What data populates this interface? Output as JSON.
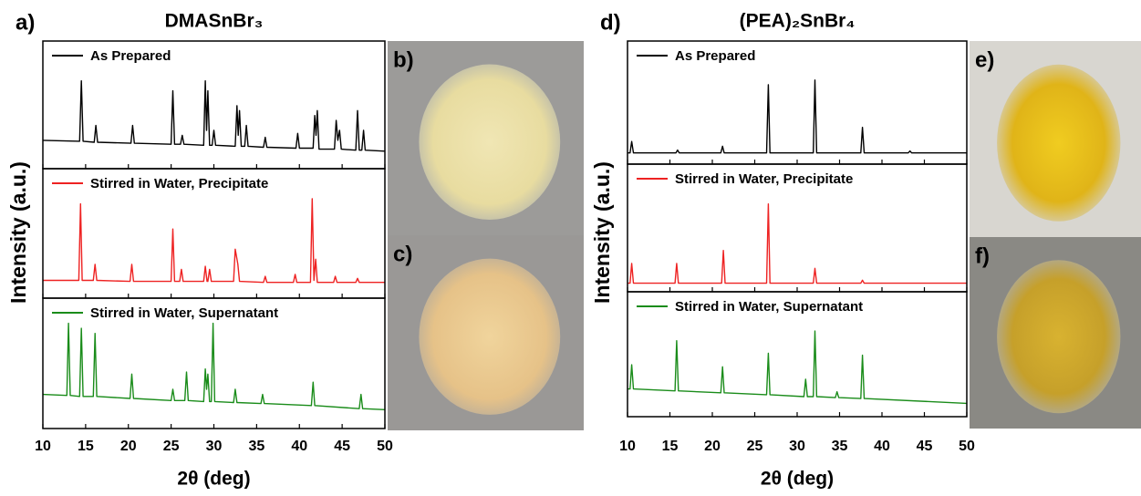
{
  "chart_data": [
    {
      "type": "line",
      "panel_label": "a)",
      "title": "DMASnBr₃",
      "xlabel": "2θ (deg)",
      "ylabel": "Intensity (a.u.)",
      "xlim": [
        10,
        50
      ],
      "xticks": [
        10,
        15,
        20,
        25,
        30,
        35,
        40,
        45,
        50
      ],
      "ylim": [
        0,
        1.05
      ],
      "series": [
        {
          "name": "As Prepared",
          "color": "#000000",
          "x": [
            10,
            14.3,
            14.5,
            14.7,
            16.0,
            16.2,
            16.4,
            20.3,
            20.5,
            20.7,
            25.0,
            25.2,
            25.4,
            26.1,
            26.3,
            26.5,
            28.8,
            29.0,
            29.15,
            29.3,
            29.5,
            29.8,
            30.0,
            30.2,
            32.5,
            32.7,
            32.85,
            33.0,
            33.2,
            33.6,
            33.8,
            34.0,
            35.8,
            36.0,
            36.2,
            39.6,
            39.8,
            40.0,
            41.6,
            41.8,
            41.95,
            42.1,
            42.3,
            44.1,
            44.3,
            44.5,
            44.7,
            44.9,
            46.6,
            46.8,
            47.0,
            47.3,
            47.5,
            47.7,
            50
          ],
          "values": [
            0.25,
            0.24,
            0.85,
            0.24,
            0.23,
            0.4,
            0.23,
            0.22,
            0.4,
            0.22,
            0.21,
            0.75,
            0.21,
            0.21,
            0.3,
            0.21,
            0.2,
            0.85,
            0.35,
            0.75,
            0.2,
            0.2,
            0.35,
            0.2,
            0.19,
            0.6,
            0.3,
            0.55,
            0.19,
            0.19,
            0.4,
            0.19,
            0.18,
            0.28,
            0.18,
            0.17,
            0.32,
            0.17,
            0.17,
            0.5,
            0.3,
            0.55,
            0.16,
            0.16,
            0.45,
            0.25,
            0.35,
            0.16,
            0.15,
            0.55,
            0.15,
            0.15,
            0.35,
            0.15,
            0.14
          ]
        },
        {
          "name": "Stirred in Water, Precipitate",
          "color": "#ee2222",
          "x": [
            10,
            14.2,
            14.4,
            14.6,
            15.9,
            16.1,
            16.3,
            20.2,
            20.4,
            20.6,
            25.0,
            25.2,
            25.4,
            26.0,
            26.2,
            26.4,
            28.8,
            29.0,
            29.2,
            29.3,
            29.5,
            29.7,
            32.3,
            32.5,
            32.8,
            33.0,
            35.8,
            36.0,
            36.2,
            39.3,
            39.5,
            39.7,
            41.3,
            41.5,
            41.7,
            41.9,
            42.1,
            44.0,
            44.2,
            44.4,
            46.6,
            46.8,
            47.0,
            50
          ],
          "values": [
            0.14,
            0.14,
            0.9,
            0.14,
            0.14,
            0.3,
            0.14,
            0.13,
            0.3,
            0.13,
            0.13,
            0.65,
            0.13,
            0.13,
            0.25,
            0.13,
            0.13,
            0.28,
            0.13,
            0.13,
            0.25,
            0.13,
            0.13,
            0.45,
            0.3,
            0.13,
            0.12,
            0.18,
            0.12,
            0.12,
            0.2,
            0.12,
            0.12,
            0.95,
            0.14,
            0.35,
            0.12,
            0.12,
            0.18,
            0.12,
            0.12,
            0.16,
            0.12,
            0.12
          ]
        },
        {
          "name": "Stirred in Water, Supernatant",
          "color": "#1a8c1a",
          "x": [
            10,
            12.8,
            13.0,
            13.2,
            14.3,
            14.5,
            14.7,
            15.9,
            16.1,
            16.3,
            20.2,
            20.4,
            20.6,
            25.0,
            25.2,
            25.4,
            26.6,
            26.8,
            27.0,
            28.8,
            29.0,
            29.15,
            29.3,
            29.5,
            29.7,
            29.9,
            30.1,
            32.3,
            32.5,
            32.7,
            35.5,
            35.7,
            35.9,
            41.4,
            41.6,
            41.8,
            47.0,
            47.2,
            47.4,
            50
          ],
          "values": [
            0.3,
            0.29,
            1.0,
            0.29,
            0.28,
            0.95,
            0.28,
            0.28,
            0.9,
            0.28,
            0.26,
            0.5,
            0.26,
            0.24,
            0.35,
            0.24,
            0.24,
            0.52,
            0.24,
            0.23,
            0.55,
            0.35,
            0.5,
            0.23,
            0.23,
            1.0,
            0.23,
            0.22,
            0.35,
            0.22,
            0.21,
            0.3,
            0.21,
            0.19,
            0.42,
            0.19,
            0.16,
            0.3,
            0.16,
            0.15
          ]
        }
      ]
    },
    {
      "type": "line",
      "panel_label": "d)",
      "title": "(PEA)₂SnBr₄",
      "xlabel": "2θ (deg)",
      "ylabel": "Intensity (a.u.)",
      "xlim": [
        10,
        50
      ],
      "xticks": [
        10,
        15,
        20,
        25,
        30,
        35,
        40,
        45,
        50
      ],
      "ylim": [
        0,
        1.05
      ],
      "series": [
        {
          "name": "As Prepared",
          "color": "#000000",
          "x": [
            10,
            10.3,
            10.5,
            10.7,
            15.7,
            15.9,
            16.1,
            21.0,
            21.2,
            21.4,
            26.4,
            26.6,
            26.8,
            31.9,
            32.1,
            32.3,
            37.5,
            37.7,
            37.9,
            43.1,
            43.3,
            43.5,
            50
          ],
          "values": [
            0.08,
            0.08,
            0.2,
            0.08,
            0.08,
            0.11,
            0.08,
            0.08,
            0.15,
            0.08,
            0.08,
            0.8,
            0.08,
            0.08,
            0.85,
            0.08,
            0.08,
            0.35,
            0.08,
            0.08,
            0.1,
            0.08,
            0.08
          ]
        },
        {
          "name": "Stirred in Water, Precipitate",
          "color": "#ee2222",
          "x": [
            10,
            10.3,
            10.5,
            10.7,
            15.6,
            15.8,
            16.0,
            21.1,
            21.3,
            21.5,
            26.4,
            26.6,
            26.8,
            31.9,
            32.1,
            32.3,
            37.5,
            37.7,
            37.9,
            50
          ],
          "values": [
            0.05,
            0.05,
            0.25,
            0.05,
            0.05,
            0.25,
            0.05,
            0.05,
            0.38,
            0.05,
            0.05,
            0.85,
            0.05,
            0.05,
            0.2,
            0.05,
            0.05,
            0.08,
            0.05,
            0.05
          ]
        },
        {
          "name": "Stirred in Water, Supernatant",
          "color": "#1a8c1a",
          "x": [
            10,
            10.3,
            10.5,
            10.7,
            15.6,
            15.8,
            16.0,
            21.0,
            21.2,
            21.4,
            26.4,
            26.6,
            26.8,
            30.8,
            31.0,
            31.2,
            31.9,
            32.1,
            32.3,
            34.5,
            34.7,
            34.9,
            37.5,
            37.7,
            37.9,
            50
          ],
          "values": [
            0.25,
            0.25,
            0.5,
            0.25,
            0.23,
            0.75,
            0.23,
            0.21,
            0.48,
            0.21,
            0.19,
            0.62,
            0.19,
            0.17,
            0.35,
            0.17,
            0.17,
            0.85,
            0.17,
            0.16,
            0.22,
            0.16,
            0.15,
            0.6,
            0.15,
            0.1
          ]
        }
      ]
    }
  ],
  "photos": [
    "b)",
    "c)",
    "e)",
    "f)"
  ]
}
